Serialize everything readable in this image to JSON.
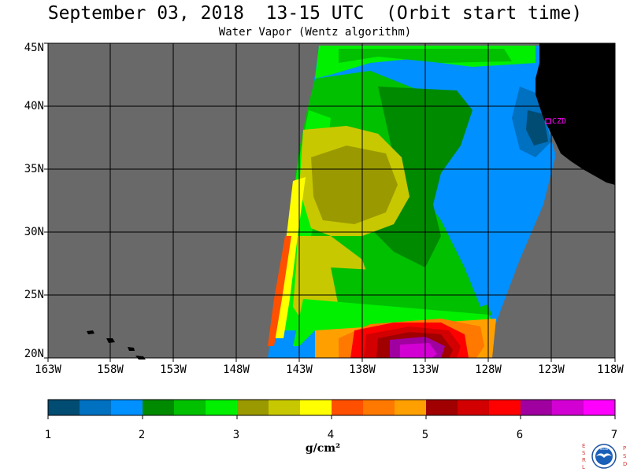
{
  "header": {
    "title": "September 03, 2018  13-15 UTC  (Orbit start time)",
    "subtitle": "Water Vapor (Wentz algorithm)"
  },
  "map": {
    "lat_labels": [
      "45N",
      "40N",
      "35N",
      "30N",
      "25N",
      "20N"
    ],
    "lon_labels": [
      "163W",
      "158W",
      "153W",
      "148W",
      "143W",
      "138W",
      "133W",
      "128W",
      "123W",
      "118W"
    ],
    "station_label": "CZD",
    "station_color": "#ff00ff",
    "land_color": "#000000",
    "no_data_color": "#696969"
  },
  "colorbar": {
    "unit": "g/cm²",
    "tick_labels": [
      "1",
      "2",
      "3",
      "4",
      "5",
      "6",
      "7"
    ],
    "colors": [
      "#004c73",
      "#0070c0",
      "#0090ff",
      "#008a00",
      "#00c000",
      "#00f000",
      "#9a9a00",
      "#c8c800",
      "#ffff00",
      "#ff5000",
      "#ff7800",
      "#ffa000",
      "#a00000",
      "#d20000",
      "#ff0000",
      "#a000a0",
      "#d200d2",
      "#ff00ff"
    ]
  },
  "logo": {
    "left_letters": [
      "E",
      "S",
      "R",
      "L"
    ],
    "right_letters": [
      "P",
      "S",
      "D"
    ],
    "center_text": "NOAA"
  }
}
